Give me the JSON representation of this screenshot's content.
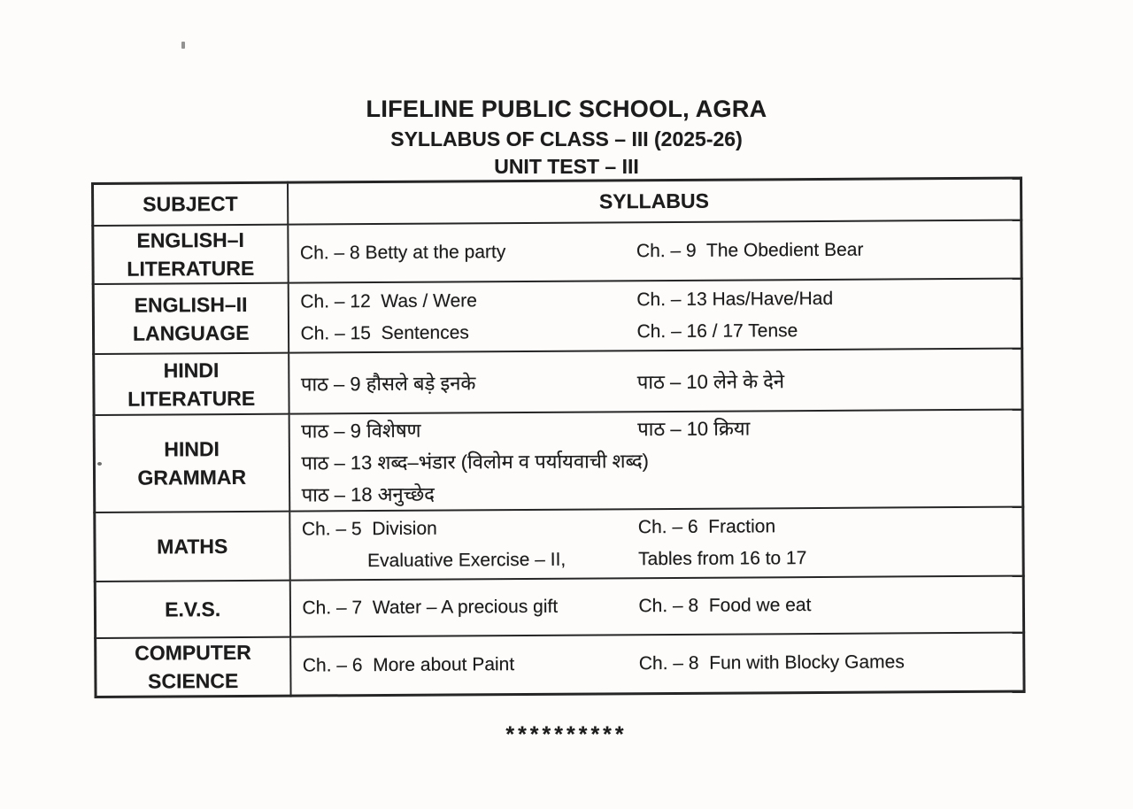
{
  "page": {
    "school_name": "LIFELINE PUBLIC SCHOOL, AGRA",
    "subtitle": "SYLLABUS OF CLASS – III (2025-26)",
    "test_title": "UNIT TEST – III",
    "footer_stars": "**********"
  },
  "table": {
    "col_subject": "SUBJECT",
    "col_syllabus": "SYLLABUS",
    "rows": [
      {
        "subject": [
          "ENGLISH–I",
          "LITERATURE"
        ],
        "lines": [
          {
            "left": "Ch. – 8 Betty at the party",
            "right": "Ch. – 9  The Obedient Bear"
          }
        ]
      },
      {
        "subject": [
          "ENGLISH–II",
          "LANGUAGE"
        ],
        "lines": [
          {
            "left": "Ch. – 12  Was / Were",
            "right": "Ch. – 13 Has/Have/Had"
          },
          {
            "left": "Ch. – 15  Sentences",
            "right": "Ch. – 16 / 17 Tense"
          }
        ]
      },
      {
        "subject": [
          "HINDI",
          "LITERATURE"
        ],
        "lines": [
          {
            "left": "पाठ – 9 हौसले बड़े इनके",
            "right": "पाठ – 10 लेने के देने"
          }
        ]
      },
      {
        "subject": [
          "HINDI",
          "GRAMMAR"
        ],
        "lines": [
          {
            "left": "पाठ – 9 विशेषण",
            "right": "पाठ – 10 क्रिया"
          },
          {
            "full": "पाठ – 13 शब्द–भंडार (विलोम व पर्यायवाची शब्द)"
          },
          {
            "full": "पाठ – 18 अनुच्छेद"
          }
        ]
      },
      {
        "subject": [
          "MATHS"
        ],
        "lines": [
          {
            "left": "Ch. – 5  Division",
            "right": "Ch. – 6  Fraction"
          },
          {
            "left_indent": "Evaluative Exercise – II,",
            "right": "Tables from 16 to 17"
          }
        ]
      },
      {
        "subject": [
          "E.V.S."
        ],
        "lines": [
          {
            "left": "Ch. – 7  Water – A precious gift",
            "right": "Ch. – 8  Food we eat"
          }
        ]
      },
      {
        "subject": [
          "COMPUTER",
          "SCIENCE"
        ],
        "lines": [
          {
            "left": "Ch. – 6  More about Paint",
            "right": "Ch. – 8  Fun with Blocky Games"
          }
        ]
      }
    ]
  },
  "colors": {
    "paper": "#fdfcfa",
    "ink": "#1c1c1c",
    "border": "#262626"
  }
}
